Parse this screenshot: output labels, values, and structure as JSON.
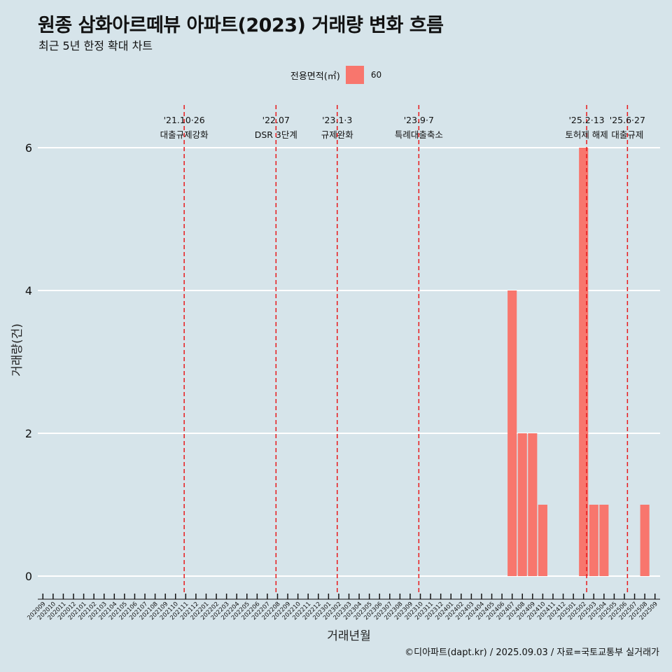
{
  "header": {
    "title": "원종 삼화아르떼뷰 아파트(2023) 거래량 변화 흐름",
    "subtitle": "최근 5년 한정 확대 차트"
  },
  "legend": {
    "title": "전용면적(㎡)",
    "item_label": "60",
    "item_color": "#f8766d"
  },
  "caption": "©디아파트(dapt.kr) / 2025.09.03 / 자료=국토교통부 실거래가",
  "chart_data": {
    "type": "bar",
    "xlabel": "거래년월",
    "ylabel": "거래량(건)",
    "ylim": [
      0,
      6
    ],
    "yticks": [
      0,
      2,
      4,
      6
    ],
    "grid": true,
    "legend_position": "top",
    "bar_color": "#f8766d",
    "event_line_color": "#e8191b",
    "categories": [
      "202009",
      "202010",
      "202011",
      "202012",
      "202101",
      "202102",
      "202103",
      "202104",
      "202105",
      "202106",
      "202107",
      "202108",
      "202109",
      "202110",
      "202111",
      "202112",
      "202201",
      "202202",
      "202203",
      "202204",
      "202205",
      "202206",
      "202207",
      "202208",
      "202209",
      "202210",
      "202211",
      "202212",
      "202301",
      "202302",
      "202303",
      "202304",
      "202305",
      "202306",
      "202307",
      "202308",
      "202309",
      "202310",
      "202311",
      "202312",
      "202401",
      "202402",
      "202403",
      "202404",
      "202405",
      "202406",
      "202407",
      "202408",
      "202409",
      "202410",
      "202411",
      "202412",
      "202501",
      "202502",
      "202503",
      "202504",
      "202505",
      "202506",
      "202507",
      "202508",
      "202509"
    ],
    "series": [
      {
        "name": "60",
        "values": [
          0,
          0,
          0,
          0,
          0,
          0,
          0,
          0,
          0,
          0,
          0,
          0,
          0,
          0,
          0,
          0,
          0,
          0,
          0,
          0,
          0,
          0,
          0,
          0,
          0,
          0,
          0,
          0,
          0,
          0,
          0,
          0,
          0,
          0,
          0,
          0,
          0,
          0,
          0,
          0,
          0,
          0,
          0,
          0,
          0,
          0,
          4,
          2,
          2,
          1,
          0,
          0,
          0,
          6,
          1,
          1,
          0,
          0,
          0,
          1,
          0
        ]
      }
    ],
    "events": [
      {
        "date_label": "'21.10·26",
        "desc": "대출규제강화",
        "x_index": 13.85
      },
      {
        "date_label": "'22.07",
        "desc": "DSR 3단계",
        "x_index": 22.85
      },
      {
        "date_label": "'23.1·3",
        "desc": "규제완화",
        "x_index": 28.85
      },
      {
        "date_label": "'23.9·7",
        "desc": "특례대출축소",
        "x_index": 36.85
      },
      {
        "date_label": "'25.2·13",
        "desc": "토허제 해제",
        "x_index": 53.3
      },
      {
        "date_label": "'25.6·27",
        "desc": "대출규제",
        "x_index": 57.3
      }
    ]
  }
}
